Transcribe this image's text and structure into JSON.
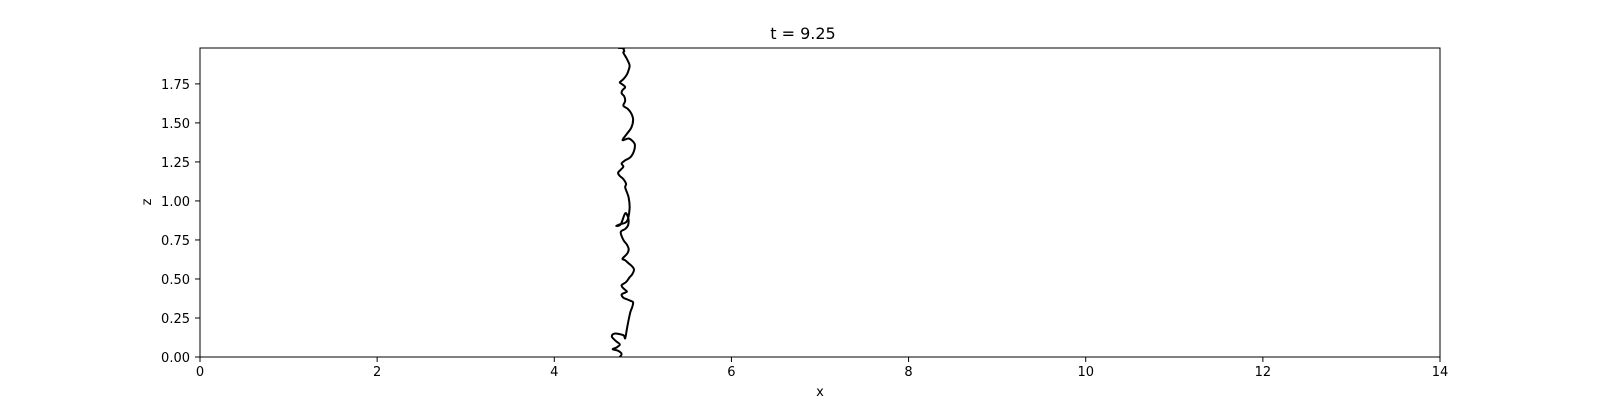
{
  "chart_data": {
    "type": "line",
    "title": "t = 9.25",
    "xlabel": "x",
    "ylabel": "z",
    "xlim": [
      0,
      14
    ],
    "ylim": [
      0,
      1.98
    ],
    "grid": false,
    "x_ticks": [
      0,
      2,
      4,
      6,
      8,
      10,
      12,
      14
    ],
    "x_tick_labels": [
      "0",
      "2",
      "4",
      "6",
      "8",
      "10",
      "12",
      "14"
    ],
    "y_ticks": [
      0,
      0.25,
      0.5,
      0.75,
      1.0,
      1.25,
      1.5,
      1.75
    ],
    "y_tick_labels": [
      "0.00",
      "0.25",
      "0.50",
      "0.75",
      "1.00",
      "1.25",
      "1.50",
      "1.75"
    ],
    "line_color": "#000000",
    "series": [
      {
        "x": [
          4.74,
          4.76,
          4.72,
          4.66,
          4.7,
          4.74,
          4.7,
          4.65,
          4.68,
          4.78,
          4.8,
          4.82,
          4.84,
          4.86,
          4.88,
          4.89,
          4.86,
          4.82,
          4.78,
          4.76,
          4.79,
          4.82,
          4.78,
          4.76,
          4.81,
          4.85,
          4.88,
          4.9,
          4.88,
          4.84,
          4.8,
          4.77,
          4.82,
          4.84,
          4.82,
          4.78,
          4.75,
          4.8,
          4.83,
          4.84,
          4.83,
          4.8,
          4.75,
          4.7,
          4.74,
          4.82,
          4.85,
          4.84,
          4.81,
          4.8,
          4.81,
          4.78,
          4.74,
          4.72,
          4.75,
          4.78,
          4.76,
          4.8,
          4.86,
          4.9,
          4.91,
          4.89,
          4.84,
          4.77,
          4.82,
          4.87,
          4.89,
          4.87,
          4.83,
          4.78,
          4.8,
          4.79,
          4.76,
          4.77,
          4.8,
          4.76,
          4.74,
          4.78,
          4.82,
          4.84,
          4.85,
          4.82,
          4.78,
          4.79,
          4.77,
          4.73,
          4.79
        ],
        "y": [
          0.0,
          0.02,
          0.04,
          0.05,
          0.06,
          0.08,
          0.1,
          0.13,
          0.15,
          0.14,
          0.12,
          0.18,
          0.24,
          0.29,
          0.32,
          0.35,
          0.36,
          0.37,
          0.38,
          0.4,
          0.41,
          0.42,
          0.44,
          0.46,
          0.48,
          0.51,
          0.53,
          0.56,
          0.58,
          0.6,
          0.62,
          0.63,
          0.66,
          0.69,
          0.72,
          0.75,
          0.8,
          0.82,
          0.84,
          0.87,
          0.9,
          0.92,
          0.85,
          0.84,
          0.85,
          0.87,
          0.95,
          1.02,
          1.07,
          1.09,
          1.11,
          1.14,
          1.16,
          1.18,
          1.2,
          1.22,
          1.24,
          1.26,
          1.28,
          1.32,
          1.36,
          1.38,
          1.4,
          1.39,
          1.43,
          1.47,
          1.52,
          1.56,
          1.59,
          1.61,
          1.64,
          1.67,
          1.69,
          1.71,
          1.73,
          1.75,
          1.76,
          1.78,
          1.81,
          1.84,
          1.87,
          1.91,
          1.95,
          1.96,
          1.98,
          1.98,
          1.98
        ]
      }
    ]
  }
}
